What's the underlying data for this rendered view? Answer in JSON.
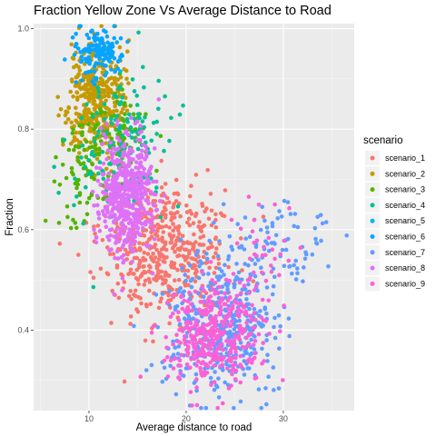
{
  "chart_data": {
    "type": "scatter",
    "title": "Fraction Yellow Zone Vs Average Distance to Road",
    "xlabel": "Average distance to road",
    "ylabel": "Fraction",
    "xlim": [
      4.3,
      37.3
    ],
    "ylim": [
      0.24,
      1.01
    ],
    "x_ticks": [
      10,
      20,
      30
    ],
    "y_ticks": [
      0.4,
      0.6,
      0.8,
      1.0
    ],
    "x_tick_labels": [
      "10",
      "20",
      "30"
    ],
    "y_tick_labels": [
      "0.4",
      "0.6",
      "0.8",
      "1.0"
    ],
    "grid": true,
    "panel_background": "#EBEBEB",
    "legend": {
      "title": "scenario",
      "position": "right"
    },
    "series": [
      {
        "name": "scenario_1",
        "color": "#F8766D",
        "count": 500,
        "clusters": [
          {
            "mx": 17.5,
            "my": 0.56,
            "sx": 3.2,
            "sy": 0.07,
            "w": 1
          }
        ]
      },
      {
        "name": "scenario_2",
        "color": "#C49A00",
        "count": 380,
        "clusters": [
          {
            "mx": 10.8,
            "my": 0.86,
            "sx": 1.4,
            "sy": 0.055,
            "w": 1
          }
        ]
      },
      {
        "name": "scenario_3",
        "color": "#53B400",
        "count": 160,
        "clusters": [
          {
            "mx": 9.5,
            "my": 0.72,
            "sx": 1.6,
            "sy": 0.06,
            "w": 0.55
          },
          {
            "mx": 13.5,
            "my": 0.78,
            "sx": 1.6,
            "sy": 0.05,
            "w": 0.45
          }
        ]
      },
      {
        "name": "scenario_4",
        "color": "#00C094",
        "count": 160,
        "clusters": [
          {
            "mx": 13.5,
            "my": 0.76,
            "sx": 2.4,
            "sy": 0.07,
            "w": 1
          }
        ]
      },
      {
        "name": "scenario_5",
        "color": "#00B6EB",
        "count": 6,
        "clusters": [
          {
            "mx": 12.0,
            "my": 0.93,
            "sx": 1.5,
            "sy": 0.03,
            "w": 1
          }
        ]
      },
      {
        "name": "scenario_6",
        "color": "#06A4FF",
        "count": 130,
        "clusters": [
          {
            "mx": 11.0,
            "my": 0.95,
            "sx": 1.3,
            "sy": 0.025,
            "w": 1
          }
        ]
      },
      {
        "name": "scenario_7",
        "color": "#619CFF",
        "count": 500,
        "clusters": [
          {
            "mx": 23.5,
            "my": 0.41,
            "sx": 3.0,
            "sy": 0.07,
            "w": 0.85
          },
          {
            "mx": 29.5,
            "my": 0.58,
            "sx": 3.0,
            "sy": 0.04,
            "w": 0.15
          }
        ]
      },
      {
        "name": "scenario_8",
        "color": "#DF70F8",
        "count": 480,
        "clusters": [
          {
            "mx": 13.8,
            "my": 0.67,
            "sx": 1.4,
            "sy": 0.06,
            "w": 1
          }
        ]
      },
      {
        "name": "scenario_9",
        "color": "#FB61D7",
        "count": 420,
        "clusters": [
          {
            "mx": 23.0,
            "my": 0.39,
            "sx": 2.3,
            "sy": 0.05,
            "w": 0.9
          },
          {
            "mx": 28.0,
            "my": 0.55,
            "sx": 2.0,
            "sy": 0.05,
            "w": 0.1
          }
        ]
      }
    ]
  }
}
